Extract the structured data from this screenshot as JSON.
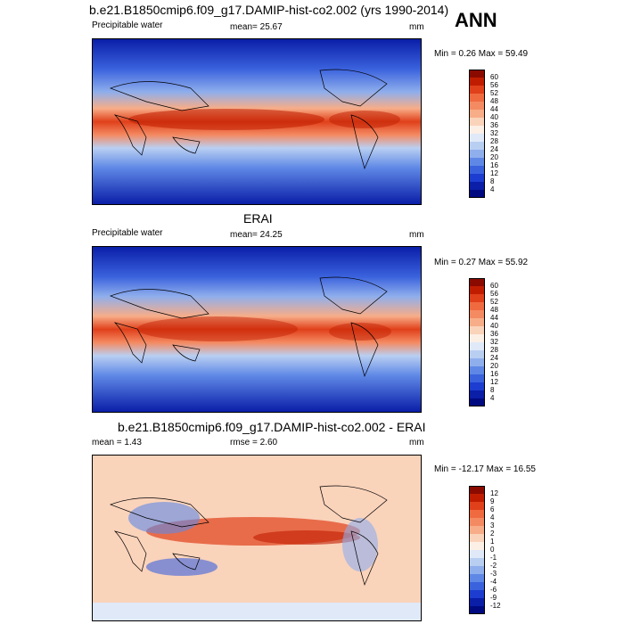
{
  "season": "ANN",
  "panel1": {
    "title": "b.e21.B1850cmip6.f09_g17.DAMIP-hist-co2.002 (yrs 1990-2014)",
    "left": "Precipitable water",
    "center": "mean=  25.67",
    "right": "mm",
    "minmax": "Min =   0.26 Max =  59.49"
  },
  "panel2": {
    "title": "ERAI",
    "left": "Precipitable water",
    "center": "mean=  24.25",
    "right": "mm",
    "minmax": "Min =   0.27 Max =  55.92"
  },
  "panel3": {
    "title": "b.e21.B1850cmip6.f09_g17.DAMIP-hist-co2.002 - ERAI",
    "left": "mean =   1.43",
    "center": "rmse =   2.60",
    "right": "mm",
    "minmax": "Min = -12.17 Max =  16.55"
  },
  "colorbar_abs": {
    "labels": [
      "60",
      "56",
      "52",
      "48",
      "44",
      "40",
      "36",
      "32",
      "28",
      "24",
      "20",
      "16",
      "12",
      "8",
      "4"
    ],
    "colors": [
      "#8b0a00",
      "#c01d00",
      "#e0401a",
      "#f06a40",
      "#f48a62",
      "#f7ad88",
      "#fad3bb",
      "#fcefe6",
      "#dfe9f8",
      "#b9cff2",
      "#8faeec",
      "#5f88e6",
      "#3a62dd",
      "#1c3dcf",
      "#0a1ea8",
      "#000a80"
    ]
  },
  "colorbar_diff": {
    "labels": [
      "12",
      "9",
      "6",
      "4",
      "3",
      "2",
      "1",
      "0",
      "-1",
      "-2",
      "-3",
      "-4",
      "-6",
      "-9",
      "-12"
    ],
    "colors": [
      "#8b0a00",
      "#c01d00",
      "#e0401a",
      "#f06a40",
      "#f48a62",
      "#f7ad88",
      "#fad3bb",
      "#fcefe6",
      "#dfe9f8",
      "#b9cff2",
      "#8faeec",
      "#5f88e6",
      "#3a62dd",
      "#1c3dcf",
      "#0a1ea8",
      "#000a80"
    ]
  }
}
